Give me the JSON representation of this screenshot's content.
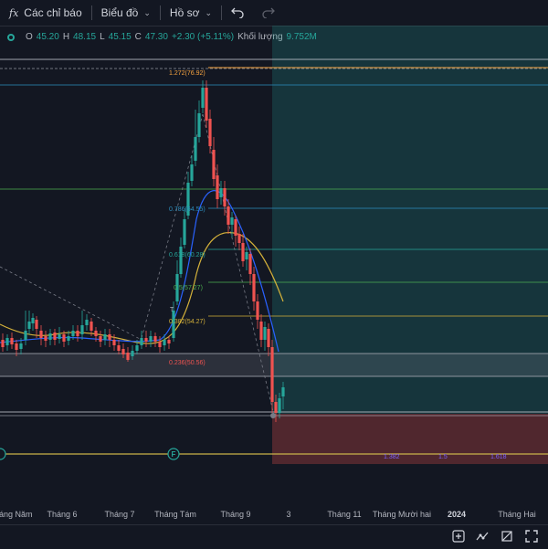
{
  "toolbar": {
    "fx_glyph": "fx",
    "indicators_label": "Các chỉ báo",
    "chart_label": "Biểu đồ",
    "profile_label": "Hồ sơ",
    "undo_icon": "undo-icon",
    "redo_icon": "redo-icon"
  },
  "legend": {
    "o_key": "O",
    "o_val": "45.20",
    "h_key": "H",
    "h_val": "48.15",
    "l_key": "L",
    "l_val": "45.15",
    "c_key": "C",
    "c_val": "47.30",
    "change": "+2.30 (+5.11%)",
    "volume_label": "Khối lượng",
    "volume_val": "9.752M"
  },
  "fib": {
    "l1272": "1.272(76.92)",
    "l786": "0.786(64.55)",
    "l618": "0.618(60.28)",
    "l5": "0.5(57.27)",
    "l382": "0.382(54.27)",
    "l236": "0.236(50.56)",
    "t_marker": "T",
    "f_marker": "F"
  },
  "bottom_labels": {
    "a": "1.382",
    "b": "1.5",
    "c": "1.618"
  },
  "time_axis": {
    "t1": "Tháng Năm",
    "t2": "Tháng 6",
    "t3": "Tháng 7",
    "t4": "Tháng Tám",
    "t5": "Tháng 9",
    "t6": "3",
    "t7": "Tháng 11",
    "t8": "Tháng Mười hai",
    "t9": "2024",
    "t10": "Tháng Hai"
  },
  "colors": {
    "up": "#26a69a",
    "down": "#ef5350",
    "ma_yellow": "#d4b13a",
    "ma_blue": "#2962ff",
    "background": "#131722"
  },
  "icons": [
    "indicator-fx-icon",
    "undo-icon",
    "redo-icon",
    "compare-icon",
    "indicators-icon",
    "measure-icon",
    "fullscreen-icon"
  ]
}
